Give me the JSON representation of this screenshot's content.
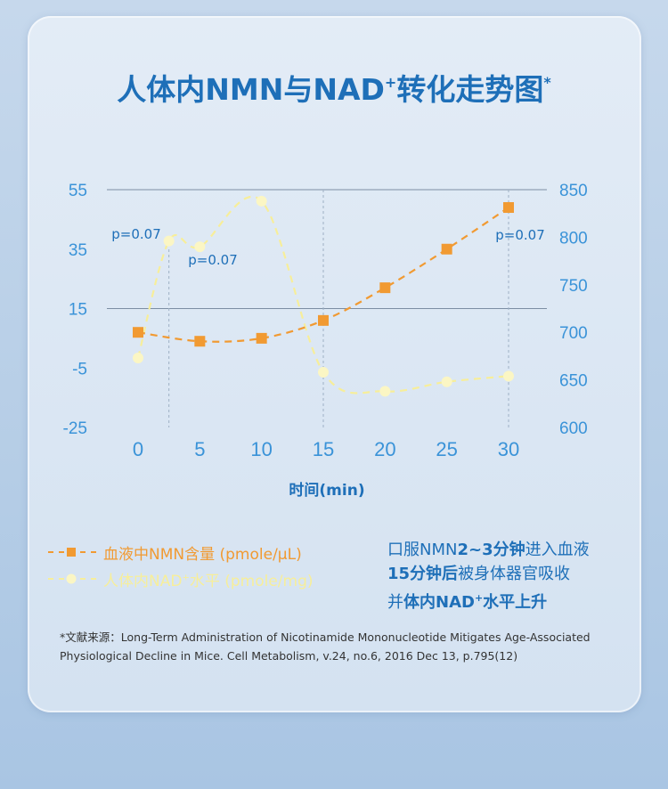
{
  "title": {
    "main": "人体内NMN与NAD",
    "plus": "+",
    "rest": "转化走势图",
    "star": "*"
  },
  "chart_data": {
    "type": "line",
    "title": "人体内NMN与NAD+转化走势图*",
    "xlabel": "时间(min)",
    "x_ticks": [
      0,
      5,
      10,
      15,
      20,
      25,
      30
    ],
    "y_left_ticks": [
      55,
      35,
      15,
      -5,
      -25
    ],
    "y_left_lim": [
      -25,
      55
    ],
    "y_right_ticks": [
      850,
      800,
      750,
      700,
      650,
      600
    ],
    "y_right_lim": [
      600,
      850
    ],
    "series": [
      {
        "name": "血液中NMN含量 (pmole/µL)",
        "axis": "left",
        "color": "#f19a32",
        "marker": "square",
        "x": [
          0,
          5,
          10,
          15,
          20,
          25,
          30
        ],
        "y": [
          7,
          4,
          5,
          11,
          22,
          35,
          49
        ]
      },
      {
        "name": "人体内NAD+水平 (pmole/mg)",
        "axis": "right",
        "color": "#f7ee9a",
        "marker": "circle",
        "x": [
          0,
          2.5,
          5,
          10,
          15,
          20,
          25,
          30
        ],
        "y": [
          673,
          796,
          790,
          838,
          658,
          638,
          648,
          654
        ]
      }
    ],
    "annotations": [
      "p=0.07",
      "p=0.07",
      "p=0.07"
    ],
    "grid": "horizontal"
  },
  "legend": {
    "nmn": "血液中NMN含量 (pmole/µL)",
    "nad_a": "人体内NAD",
    "nad_plus": "+",
    "nad_b": "水平 (pmole/mg)"
  },
  "note": {
    "l1a": "口服NMN",
    "l1b": "2~3分钟",
    "l1c": "进入血液",
    "l2a": "15分钟后",
    "l2b": "被身体器官吸收",
    "l3a": "并",
    "l3b": "体内NAD",
    "l3plus": "+",
    "l3c": "水平上升"
  },
  "source": "*文献来源：Long-Term Administration of Nicotinamide Mononucleotide Mitigates Age-Associated  Physiological Decline in Mice. Cell Metabolism, v.24, no.6, 2016 Dec 13, p.795(12)",
  "colors": {
    "title_blue": "#1e6fb8",
    "axis_blue": "#3a93d8",
    "orange": "#f19a32",
    "yellow": "#f7ee9a"
  }
}
